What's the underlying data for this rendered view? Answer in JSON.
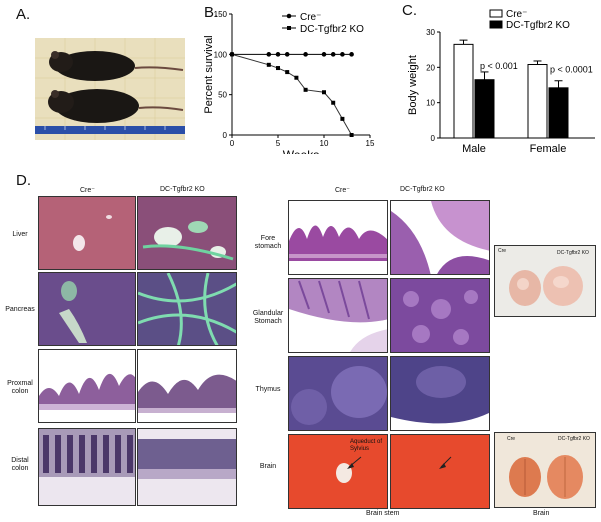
{
  "panels": {
    "a": "A.",
    "b": "B.",
    "c": "C.",
    "d": "D."
  },
  "chart_data": [
    {
      "type": "line",
      "ylabel": "Percent survival",
      "xlabel": "Weeks",
      "xlim": [
        0,
        15
      ],
      "ylim": [
        0,
        150
      ],
      "xticks": [
        "0",
        "5",
        "10",
        "15"
      ],
      "yticks": [
        "0",
        "50",
        "100",
        "150"
      ],
      "legend_position": "top",
      "series": [
        {
          "name": "Cre⁻",
          "x": [
            0,
            4,
            5,
            6,
            8,
            10,
            11,
            12,
            13
          ],
          "y": [
            100,
            100,
            100,
            100,
            100,
            100,
            100,
            100,
            100
          ]
        },
        {
          "name": "DC-Tgfbr2 KO",
          "x": [
            0,
            4,
            5,
            6,
            7,
            8,
            10,
            11,
            12,
            13
          ],
          "y": [
            100,
            87,
            83,
            78,
            71,
            56,
            53,
            40,
            20,
            0
          ]
        }
      ]
    },
    {
      "type": "bar",
      "ylabel": "Body weight",
      "ylim": [
        0,
        30
      ],
      "yticks": [
        "0",
        "10",
        "20",
        "30"
      ],
      "categories": [
        "Male",
        "Female"
      ],
      "legend_position": "top",
      "series": [
        {
          "name": "Cre⁻",
          "values": [
            26.5,
            20.8
          ],
          "errors": [
            1.2,
            1.0
          ],
          "color": "#ffffff"
        },
        {
          "name": "DC-Tgfbr2 KO",
          "values": [
            16.5,
            14.2
          ],
          "errors": [
            2.2,
            2.0
          ],
          "color": "#000000"
        }
      ],
      "annotations": [
        "p < 0.001",
        "p < 0.0001"
      ]
    }
  ],
  "histology_left": {
    "col_headers": [
      "Cre⁻",
      "DC-Tgfbr2 KO"
    ],
    "rows": [
      "Liver",
      "Pancreas",
      "Proxmal colon",
      "Distal colon"
    ]
  },
  "histology_right": {
    "col_headers": [
      "Cre⁻",
      "DC-Tgfbr2 KO"
    ],
    "rows": [
      "Fore stomach",
      "Glandular Stomach",
      "Thymus",
      "Brain"
    ],
    "brain_annotation": "Aqueduct of Sylvius",
    "footer": "Brain stem"
  },
  "photos": {
    "stomach_labels": [
      "Cre",
      "DC-Tgfbr2 KO"
    ],
    "brain_labels": [
      "Cre",
      "DC-Tgfbr2 KO"
    ],
    "brain_caption": "Brain"
  }
}
